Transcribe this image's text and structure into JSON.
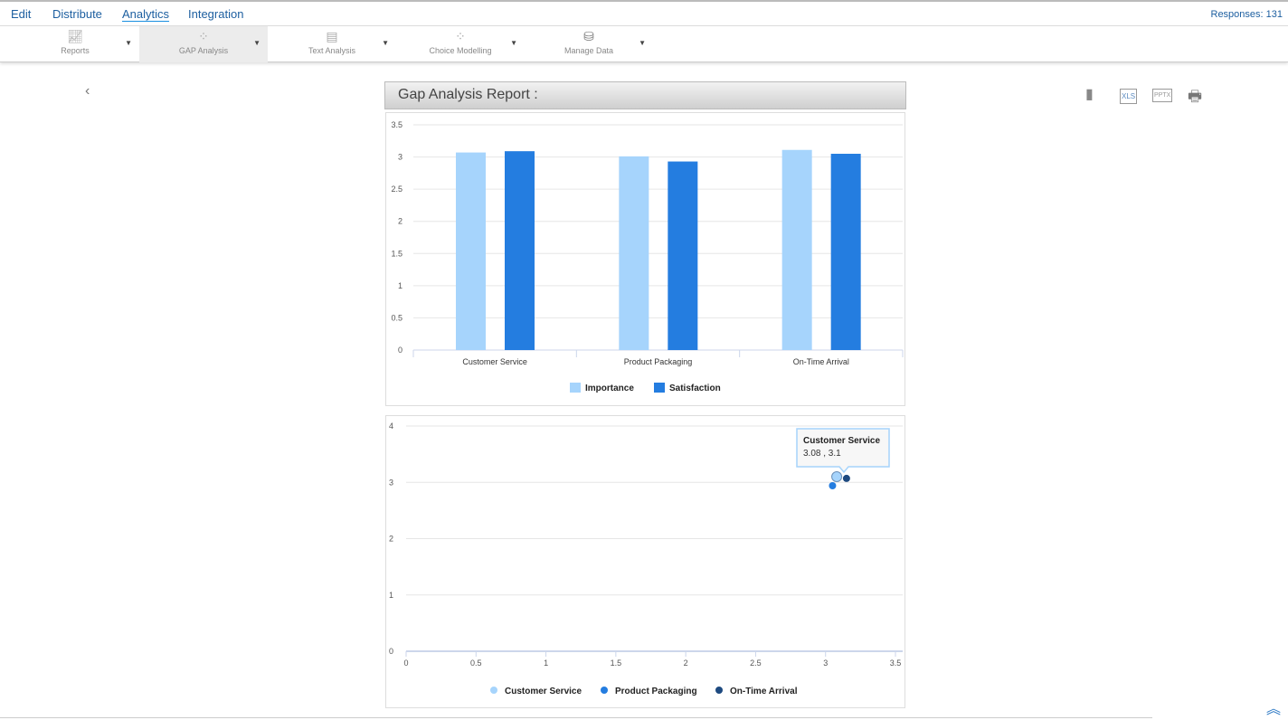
{
  "nav": {
    "items": [
      {
        "label": "Edit"
      },
      {
        "label": "Distribute"
      },
      {
        "label": "Analytics",
        "active": true
      },
      {
        "label": "Integration"
      }
    ],
    "responses": "Responses: 131"
  },
  "toolbar": {
    "items": [
      {
        "label": "Reports",
        "icon": "line-chart-icon"
      },
      {
        "label": "GAP Analysis",
        "icon": "scatter-chart-icon",
        "selected": true
      },
      {
        "label": "Text Analysis",
        "icon": "document-icon"
      },
      {
        "label": "Choice Modelling",
        "icon": "scatter-chart-icon"
      },
      {
        "label": "Manage Data",
        "icon": "database-icon"
      }
    ]
  },
  "report": {
    "title": "Gap Analysis Report :",
    "exports": [
      {
        "icon": "file-icon"
      },
      {
        "label": "XLS",
        "icon": "xls-icon"
      },
      {
        "label": "PPTX",
        "icon": "pptx-icon"
      },
      {
        "icon": "print-icon"
      }
    ]
  },
  "colors": {
    "importance": "#a6d4fc",
    "satisfaction": "#247de0",
    "customer_service": "#a6d4fc",
    "product_packaging": "#247de0",
    "on_time_arrival": "#1e4a80"
  },
  "chart_data": [
    {
      "type": "bar",
      "categories": [
        "Customer Service",
        "Product Packaging",
        "On-Time Arrival"
      ],
      "series": [
        {
          "name": "Importance",
          "values": [
            3.07,
            3.01,
            3.11
          ]
        },
        {
          "name": "Satisfaction",
          "values": [
            3.09,
            2.93,
            3.05
          ]
        }
      ],
      "ylim": [
        0,
        3.5
      ],
      "yticks": [
        "0",
        "0.5",
        "1",
        "1.5",
        "2",
        "2.5",
        "3",
        "3.5"
      ],
      "grid": true,
      "legend": "bottom"
    },
    {
      "type": "scatter",
      "series": [
        {
          "name": "Customer Service",
          "points": [
            [
              3.08,
              3.1
            ]
          ]
        },
        {
          "name": "Product Packaging",
          "points": [
            [
              3.05,
              2.94
            ]
          ]
        },
        {
          "name": "On-Time Arrival",
          "points": [
            [
              3.15,
              3.07
            ]
          ]
        }
      ],
      "xlim": [
        0,
        3.5
      ],
      "ylim": [
        0,
        4
      ],
      "xticks": [
        "0",
        "0.5",
        "1",
        "1.5",
        "2",
        "2.5",
        "3",
        "3.5"
      ],
      "yticks": [
        "0",
        "1",
        "2",
        "3",
        "4"
      ],
      "grid": true,
      "legend": "bottom",
      "tooltip": {
        "title": "Customer Service",
        "value": "3.08 , 3.1"
      }
    }
  ]
}
